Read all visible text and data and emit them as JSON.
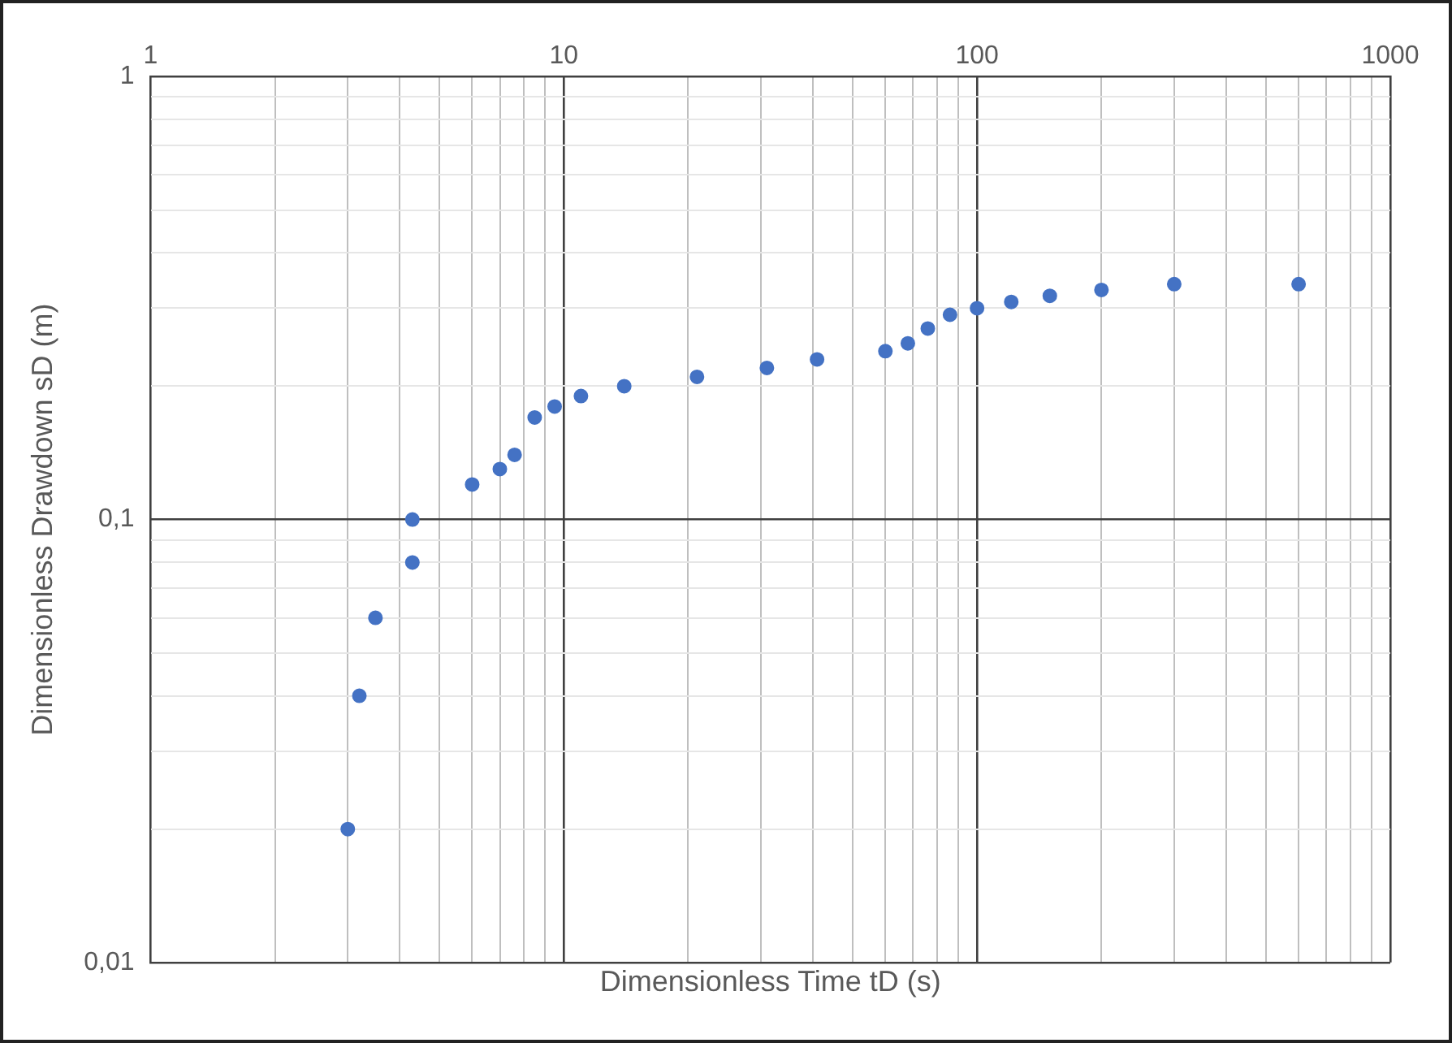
{
  "chart_data": {
    "type": "scatter",
    "xlabel": "Dimensionless Time tD (s)",
    "ylabel": "Dimensionless Drawdown sD (m)",
    "x": [
      3.0,
      3.2,
      3.5,
      4.3,
      4.3,
      6,
      7,
      7.6,
      8.5,
      9.5,
      11,
      14,
      21,
      31,
      41,
      60,
      68,
      76,
      86,
      100,
      121,
      150,
      200,
      300,
      600
    ],
    "series": [
      {
        "color": "#4472c4",
        "values": [
          0.02,
          0.04,
          0.06,
          0.08,
          0.1,
          0.12,
          0.13,
          0.14,
          0.17,
          0.18,
          0.19,
          0.2,
          0.21,
          0.22,
          0.23,
          0.24,
          0.25,
          0.27,
          0.29,
          0.3,
          0.31,
          0.32,
          0.33,
          0.34,
          0.34
        ]
      }
    ],
    "log": "xy",
    "xlim": [
      1,
      1000
    ],
    "ylim": [
      0.01,
      1
    ],
    "xticks": [
      1,
      {
        "value": 2,
        "label": null
      },
      {
        "value": 3,
        "label": null
      },
      {
        "value": 4,
        "label": null
      },
      {
        "value": 5,
        "label": null
      },
      {
        "value": 6,
        "label": null
      },
      {
        "value": 7,
        "label": null
      },
      {
        "value": 8,
        "label": null
      },
      {
        "value": 9,
        "label": null
      },
      10,
      {
        "value": 20,
        "label": null
      },
      {
        "value": 30,
        "label": null
      },
      {
        "value": 40,
        "label": null
      },
      {
        "value": 50,
        "label": null
      },
      {
        "value": 60,
        "label": null
      },
      {
        "value": 70,
        "label": null
      },
      {
        "value": 80,
        "label": null
      },
      {
        "value": 90,
        "label": null
      },
      100,
      {
        "value": 200,
        "label": null
      },
      {
        "value": 300,
        "label": null
      },
      {
        "value": 400,
        "label": null
      },
      {
        "value": 500,
        "label": null
      },
      {
        "value": 600,
        "label": null
      },
      {
        "value": 700,
        "label": null
      },
      {
        "value": 800,
        "label": null
      },
      {
        "value": 900,
        "label": null
      },
      1000
    ],
    "yticks": [
      {
        "value": 0.01,
        "label": "0,01"
      },
      {
        "value": 0.02,
        "label": null
      },
      {
        "value": 0.03,
        "label": null
      },
      {
        "value": 0.04,
        "label": null
      },
      {
        "value": 0.05,
        "label": null
      },
      {
        "value": 0.06,
        "label": null
      },
      {
        "value": 0.07,
        "label": null
      },
      {
        "value": 0.08,
        "label": null
      },
      {
        "value": 0.09,
        "label": null
      },
      {
        "value": 0.1,
        "label": "0,1"
      },
      {
        "value": 0.2,
        "label": null
      },
      {
        "value": 0.3,
        "label": null
      },
      {
        "value": 0.4,
        "label": null
      },
      {
        "value": 0.5,
        "label": null
      },
      {
        "value": 0.6,
        "label": null
      },
      {
        "value": 0.7,
        "label": null
      },
      {
        "value": 0.8,
        "label": null
      },
      {
        "value": 0.9,
        "label": null
      },
      1
    ],
    "grid": true,
    "legend": false,
    "marker": "circle"
  }
}
